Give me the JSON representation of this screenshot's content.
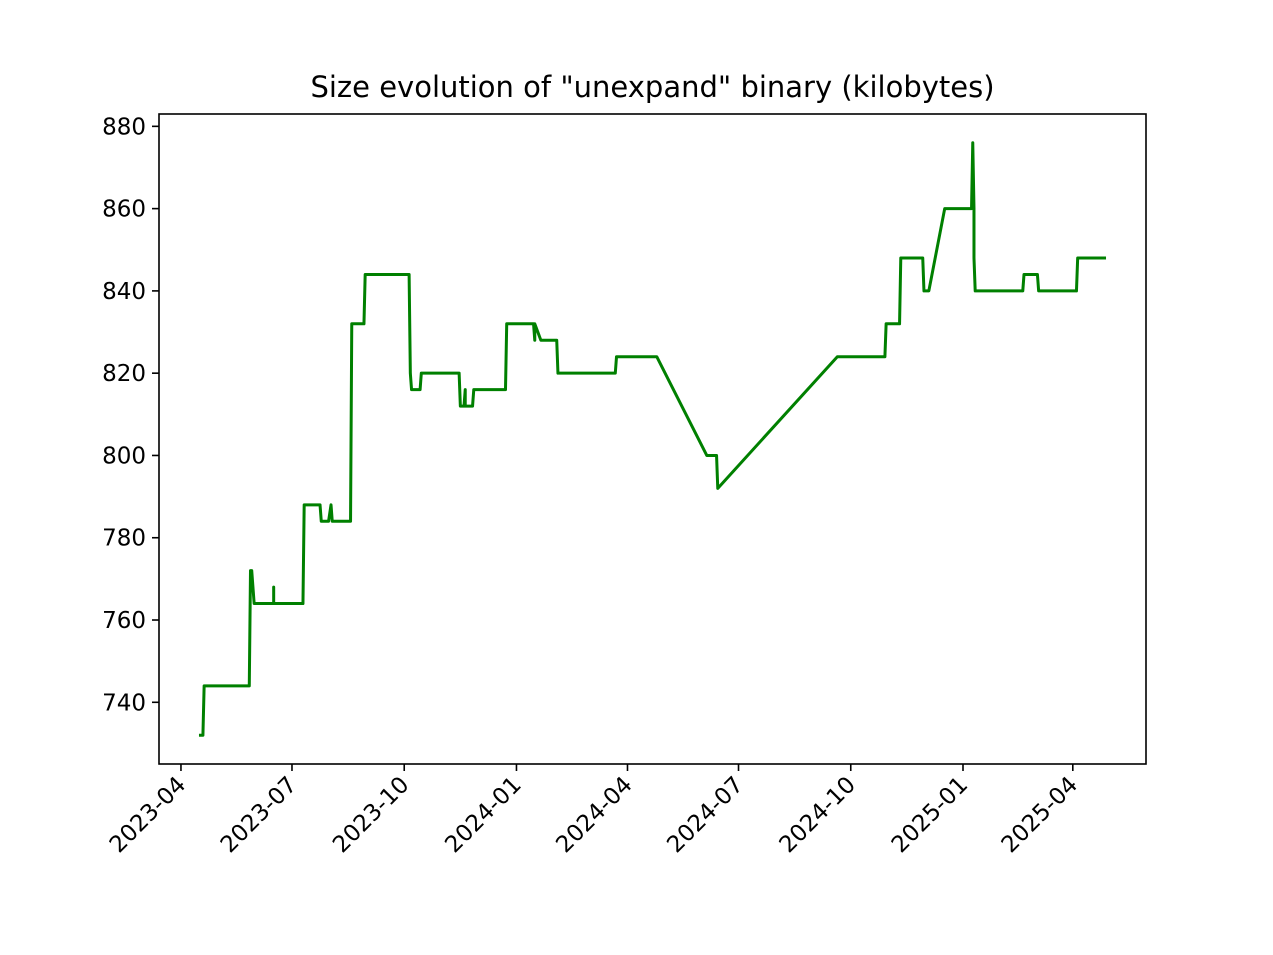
{
  "chart_data": {
    "type": "line",
    "title": "Size evolution of \"unexpand\" binary (kilobytes)",
    "xlabel": "",
    "ylabel": "",
    "x_axis": "date",
    "xlim": [
      "2023-03-14",
      "2025-05-31"
    ],
    "ylim": [
      725,
      883
    ],
    "grid": false,
    "legend": "none",
    "x_ticks": [
      "2023-04",
      "2023-07",
      "2023-10",
      "2024-01",
      "2024-04",
      "2024-07",
      "2024-10",
      "2025-01",
      "2025-04"
    ],
    "y_ticks": [
      "740",
      "760",
      "780",
      "800",
      "820",
      "840",
      "860",
      "880"
    ],
    "series": [
      {
        "name": "",
        "color": "#008000",
        "x": [
          "2023-04-17",
          "2023-04-19",
          "2023-04-20",
          "2023-05-27",
          "2023-05-28",
          "2023-05-29",
          "2023-05-31",
          "2023-06-16",
          "2023-06-16",
          "2023-06-16",
          "2023-07-10",
          "2023-07-11",
          "2023-07-24",
          "2023-07-25",
          "2023-07-31",
          "2023-08-02",
          "2023-08-03",
          "2023-08-18",
          "2023-08-19",
          "2023-08-29",
          "2023-08-30",
          "2023-10-05",
          "2023-10-06",
          "2023-10-07",
          "2023-10-14",
          "2023-10-15",
          "2023-11-15",
          "2023-11-16",
          "2023-11-19",
          "2023-11-20",
          "2023-11-20",
          "2023-11-26",
          "2023-11-27",
          "2023-12-23",
          "2023-12-24",
          "2024-01-15",
          "2024-01-16",
          "2024-01-16",
          "2024-01-16",
          "2024-01-21",
          "2024-02-03",
          "2024-02-04",
          "2024-03-22",
          "2024-03-23",
          "2024-04-25",
          "2024-06-05",
          "2024-06-13",
          "2024-06-14",
          "2024-09-20",
          "2024-10-29",
          "2024-10-30",
          "2024-11-10",
          "2024-11-11",
          "2024-11-29",
          "2024-11-30",
          "2024-12-04",
          "2024-12-17",
          "2025-01-08",
          "2025-01-09",
          "2025-01-10",
          "2025-01-10",
          "2025-01-11",
          "2025-01-12",
          "2025-02-19",
          "2025-02-20",
          "2025-03-03",
          "2025-03-04",
          "2025-04-04",
          "2025-04-05",
          "2025-04-27"
        ],
        "values": [
          732,
          732,
          744,
          744,
          772,
          772,
          764,
          764,
          768,
          764,
          764,
          788,
          788,
          784,
          784,
          788,
          784,
          784,
          832,
          832,
          844,
          844,
          820,
          816,
          816,
          820,
          820,
          812,
          812,
          816,
          812,
          812,
          816,
          816,
          832,
          832,
          828,
          832,
          832,
          828,
          828,
          820,
          820,
          824,
          824,
          800,
          800,
          792,
          824,
          824,
          832,
          832,
          848,
          848,
          840,
          840,
          860,
          860,
          876,
          860,
          848,
          840,
          840,
          840,
          844,
          844,
          840,
          840,
          848,
          848
        ]
      }
    ]
  }
}
